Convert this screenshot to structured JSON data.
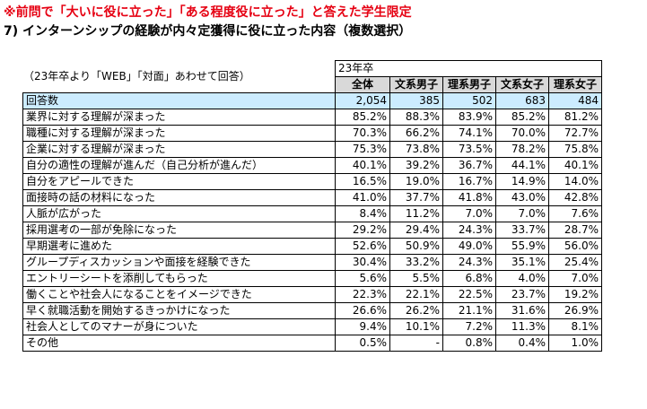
{
  "note": "※前問で「大いに役に立った」「ある程度役に立った」と答えた学生限定",
  "title": "7) インターンシップの経験が内々定獲得に役に立った内容（複数選択）",
  "subtitle": "（23年卒より「WEB」「対面」あわせて回答）",
  "table": {
    "year_label": "23年卒",
    "columns": [
      "全体",
      "文系男子",
      "理系男子",
      "文系女子",
      "理系女子"
    ],
    "rows": [
      {
        "label": "回答数",
        "values": [
          "2,054",
          "385",
          "502",
          "683",
          "484"
        ]
      },
      {
        "label": "業界に対する理解が深まった",
        "values": [
          "85.2%",
          "88.3%",
          "83.9%",
          "85.2%",
          "81.2%"
        ]
      },
      {
        "label": "職種に対する理解が深まった",
        "values": [
          "70.3%",
          "66.2%",
          "74.1%",
          "70.0%",
          "72.7%"
        ]
      },
      {
        "label": "企業に対する理解が深まった",
        "values": [
          "75.3%",
          "73.8%",
          "73.5%",
          "78.2%",
          "75.8%"
        ]
      },
      {
        "label": "自分の適性の理解が進んだ（自己分析が進んだ）",
        "values": [
          "40.1%",
          "39.2%",
          "36.7%",
          "44.1%",
          "40.1%"
        ]
      },
      {
        "label": "自分をアピールできた",
        "values": [
          "16.5%",
          "19.0%",
          "16.7%",
          "14.9%",
          "14.0%"
        ]
      },
      {
        "label": "面接時の話の材料になった",
        "values": [
          "41.0%",
          "37.7%",
          "41.8%",
          "43.0%",
          "42.8%"
        ]
      },
      {
        "label": "人脈が広がった",
        "values": [
          "8.4%",
          "11.2%",
          "7.0%",
          "7.0%",
          "7.6%"
        ]
      },
      {
        "label": "採用選考の一部が免除になった",
        "values": [
          "29.2%",
          "29.4%",
          "24.3%",
          "33.7%",
          "28.7%"
        ]
      },
      {
        "label": "早期選考に進めた",
        "values": [
          "52.6%",
          "50.9%",
          "49.0%",
          "55.9%",
          "56.0%"
        ]
      },
      {
        "label": "グループディスカッションや面接を経験できた",
        "values": [
          "30.4%",
          "33.2%",
          "24.3%",
          "35.1%",
          "25.4%"
        ]
      },
      {
        "label": "エントリーシートを添削してもらった",
        "values": [
          "5.6%",
          "5.5%",
          "6.8%",
          "4.0%",
          "7.0%"
        ]
      },
      {
        "label": "働くことや社会人になることをイメージできた",
        "values": [
          "22.3%",
          "22.1%",
          "22.5%",
          "23.7%",
          "19.2%"
        ]
      },
      {
        "label": "早く就職活動を開始するきっかけになった",
        "values": [
          "26.6%",
          "26.2%",
          "21.1%",
          "31.6%",
          "26.9%"
        ]
      },
      {
        "label": "社会人としてのマナーが身についた",
        "values": [
          "9.4%",
          "10.1%",
          "7.2%",
          "11.3%",
          "8.1%"
        ]
      },
      {
        "label": "その他",
        "values": [
          "0.5%",
          "-",
          "0.8%",
          "0.4%",
          "1.0%"
        ]
      }
    ]
  },
  "colors": {
    "note_red": "#e60012",
    "header_gray": "#d9d9d9",
    "count_row_blue": "#ccecff"
  }
}
